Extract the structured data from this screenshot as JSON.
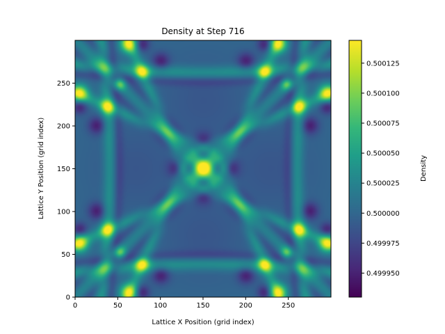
{
  "chart_data": {
    "type": "heatmap",
    "title": "Density at Step 716",
    "xlabel": "Lattice X Position (grid index)",
    "ylabel": "Lattice Y Position (grid index)",
    "xlim": [
      0,
      300
    ],
    "ylim": [
      0,
      300
    ],
    "x_ticks": [
      0,
      50,
      100,
      150,
      200,
      250
    ],
    "y_ticks": [
      0,
      50,
      100,
      150,
      200,
      250
    ],
    "grid": false,
    "colormap": "viridis",
    "colorbar": {
      "label": "Density",
      "range": [
        0.49993,
        0.500144
      ],
      "ticks": [
        "0.499950",
        "0.499975",
        "0.500000",
        "0.500025",
        "0.500050",
        "0.500075",
        "0.500100",
        "0.500125"
      ],
      "tick_values": [
        0.49995,
        0.499975,
        0.5,
        0.500025,
        0.50005,
        0.500075,
        0.5001,
        0.500125
      ]
    },
    "background_value": 0.5,
    "peak": {
      "x": 150,
      "y": 150,
      "value": 0.500144
    }
  },
  "colors": {
    "viridis": [
      "#440154",
      "#482878",
      "#3e4989",
      "#31688e",
      "#26828e",
      "#1f9e89",
      "#35b779",
      "#6ece58",
      "#b5de2b",
      "#fde725"
    ]
  }
}
